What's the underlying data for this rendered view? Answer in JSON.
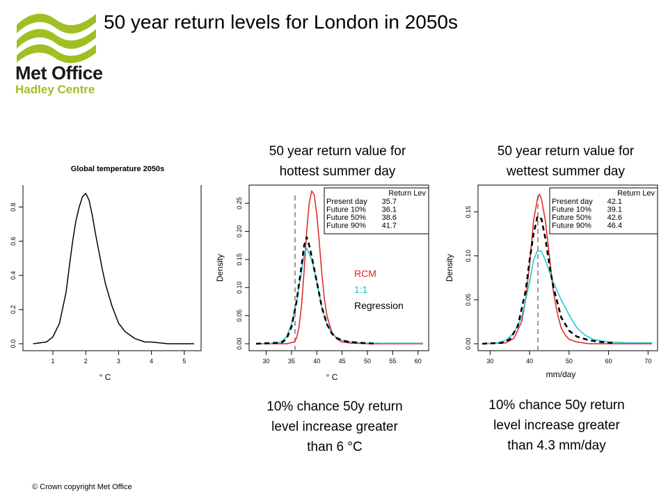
{
  "logo": {
    "line1": "Met Office",
    "line2": "Hadley Centre",
    "wave_color": "#9fbf22"
  },
  "title": "50 year return levels for London in 2050s",
  "panels": {
    "hot": {
      "title_line1": "50 year return value for",
      "title_line2": "hottest summer day",
      "note_line1": "10% chance 50y return",
      "note_line2": "level increase greater",
      "note_line3": "than 6 °C"
    },
    "wet": {
      "title_line1": "50 year return value for",
      "title_line2": "wettest summer day",
      "note_line1": "10% chance 50y return",
      "note_line2": "level increase greater",
      "note_line3": "than 4.3 mm/day"
    }
  },
  "copyright": "© Crown copyright   Met Office",
  "chart_data": [
    {
      "type": "line",
      "title": "Global temperature 2050s",
      "xlabel": "° C",
      "ylabel": "",
      "xlim": [
        0.3,
        5.3
      ],
      "ylim": [
        0,
        0.9
      ],
      "x_ticks": [
        1,
        2,
        3,
        4,
        5
      ],
      "y_ticks": [
        0.0,
        0.2,
        0.4,
        0.6,
        0.8
      ],
      "y_tick_labels": [
        "0.0",
        "0.2",
        "0.4",
        "0.6",
        "0.8"
      ],
      "series": [
        {
          "color": "#000000",
          "x": [
            0.4,
            0.8,
            1.0,
            1.2,
            1.4,
            1.5,
            1.6,
            1.7,
            1.8,
            1.9,
            2.0,
            2.1,
            2.2,
            2.3,
            2.4,
            2.5,
            2.6,
            2.8,
            3.0,
            3.2,
            3.5,
            3.8,
            4.0,
            4.5,
            5.0,
            5.3
          ],
          "y": [
            0.0,
            0.01,
            0.04,
            0.12,
            0.3,
            0.45,
            0.6,
            0.72,
            0.8,
            0.86,
            0.88,
            0.84,
            0.75,
            0.64,
            0.54,
            0.44,
            0.35,
            0.22,
            0.12,
            0.07,
            0.03,
            0.01,
            0.01,
            0.0,
            0.0,
            0.0
          ]
        }
      ]
    },
    {
      "type": "line",
      "title": "",
      "xlabel": "° C",
      "ylabel": "Density",
      "xlim": [
        28,
        61
      ],
      "ylim": [
        0,
        0.27
      ],
      "x_ticks": [
        30,
        35,
        40,
        45,
        50,
        55,
        60
      ],
      "y_ticks": [
        0.0,
        0.05,
        0.1,
        0.15,
        0.2,
        0.25
      ],
      "y_tick_labels": [
        "0.00",
        "0.05",
        "0.10",
        "0.15",
        "0.20",
        "0.25"
      ],
      "vline": 35.7,
      "legend": {
        "placement": "right",
        "items": [
          {
            "label": "RCM",
            "color": "#e02020"
          },
          {
            "label": "1:1",
            "color": "#19c3d0"
          },
          {
            "label": "Regression",
            "color": "#000000"
          }
        ]
      },
      "table": {
        "header": "Return Lev",
        "rows": [
          [
            "Present day",
            "35.7"
          ],
          [
            "Future 10%",
            "36.1"
          ],
          [
            "Future 50%",
            "38.6"
          ],
          [
            "Future 90%",
            "41.7"
          ]
        ]
      },
      "series": [
        {
          "name": "RCM",
          "color": "#e02020",
          "dashed": false,
          "x": [
            28,
            34,
            35.5,
            36,
            36.5,
            37,
            37.5,
            38,
            38.5,
            39,
            39.5,
            40,
            40.5,
            41,
            41.5,
            42,
            43,
            44,
            45,
            47,
            50,
            61
          ],
          "y": [
            0,
            0,
            0.003,
            0.01,
            0.03,
            0.07,
            0.13,
            0.2,
            0.25,
            0.272,
            0.265,
            0.23,
            0.18,
            0.125,
            0.08,
            0.05,
            0.02,
            0.008,
            0.003,
            0.001,
            0,
            0
          ]
        },
        {
          "name": "1:1",
          "color": "#19c3d0",
          "dashed": false,
          "x": [
            28,
            32,
            33,
            34,
            35,
            36,
            37,
            37.5,
            38,
            38.5,
            39,
            40,
            41,
            42,
            43,
            44,
            45,
            46,
            48,
            50,
            55,
            61
          ],
          "y": [
            0,
            0.001,
            0.004,
            0.012,
            0.035,
            0.075,
            0.13,
            0.16,
            0.17,
            0.16,
            0.15,
            0.11,
            0.065,
            0.035,
            0.018,
            0.01,
            0.006,
            0.004,
            0.002,
            0.001,
            0.001,
            0.001
          ]
        },
        {
          "name": "Regression",
          "color": "#000000",
          "dashed": true,
          "x": [
            28,
            33,
            34,
            35,
            36,
            37,
            37.5,
            38,
            38.5,
            39,
            40,
            41,
            42,
            43,
            44,
            45,
            46,
            48,
            50,
            52
          ],
          "y": [
            0,
            0.002,
            0.008,
            0.03,
            0.075,
            0.14,
            0.175,
            0.19,
            0.175,
            0.155,
            0.11,
            0.065,
            0.035,
            0.018,
            0.01,
            0.006,
            0.004,
            0.002,
            0.001,
            0
          ]
        }
      ]
    },
    {
      "type": "line",
      "title": "",
      "xlabel": "mm/day",
      "ylabel": "Density",
      "xlim": [
        28,
        71
      ],
      "ylim": [
        0,
        0.175
      ],
      "x_ticks": [
        30,
        40,
        50,
        60,
        70
      ],
      "y_ticks": [
        0.0,
        0.05,
        0.1,
        0.15
      ],
      "y_tick_labels": [
        "0.00",
        "0.05",
        "0.10",
        "0.15"
      ],
      "vline": 42.1,
      "table": {
        "header": "Return Lev",
        "rows": [
          [
            "Present day",
            "42.1"
          ],
          [
            "Future 10%",
            "39.1"
          ],
          [
            "Future 50%",
            "42.6"
          ],
          [
            "Future 90%",
            "46.4"
          ]
        ]
      },
      "series": [
        {
          "name": "RCM",
          "color": "#e02020",
          "dashed": false,
          "x": [
            28,
            34,
            36,
            38,
            39,
            40,
            41,
            42,
            42.5,
            43,
            44,
            45,
            46,
            47,
            48,
            49,
            50,
            52,
            55,
            71
          ],
          "y": [
            0,
            0.001,
            0.006,
            0.025,
            0.05,
            0.09,
            0.14,
            0.165,
            0.17,
            0.165,
            0.14,
            0.1,
            0.06,
            0.035,
            0.018,
            0.01,
            0.005,
            0.002,
            0,
            0
          ]
        },
        {
          "name": "1:1",
          "color": "#19c3d0",
          "dashed": false,
          "x": [
            28,
            32,
            34,
            36,
            38,
            40,
            41,
            42,
            43,
            44,
            45,
            46,
            48,
            50,
            51,
            52,
            54,
            56,
            60,
            65,
            71
          ],
          "y": [
            0,
            0.001,
            0.004,
            0.012,
            0.03,
            0.07,
            0.095,
            0.106,
            0.105,
            0.095,
            0.082,
            0.07,
            0.05,
            0.033,
            0.025,
            0.018,
            0.01,
            0.005,
            0.002,
            0.001,
            0.001
          ]
        },
        {
          "name": "Regression",
          "color": "#000000",
          "dashed": true,
          "x": [
            28,
            33,
            35,
            37,
            39,
            40,
            41,
            42,
            43,
            44,
            45,
            46,
            48,
            50,
            52,
            55,
            58,
            61
          ],
          "y": [
            0,
            0.001,
            0.005,
            0.02,
            0.06,
            0.095,
            0.125,
            0.145,
            0.142,
            0.12,
            0.09,
            0.065,
            0.03,
            0.015,
            0.008,
            0.004,
            0.002,
            0.001
          ]
        }
      ]
    }
  ]
}
